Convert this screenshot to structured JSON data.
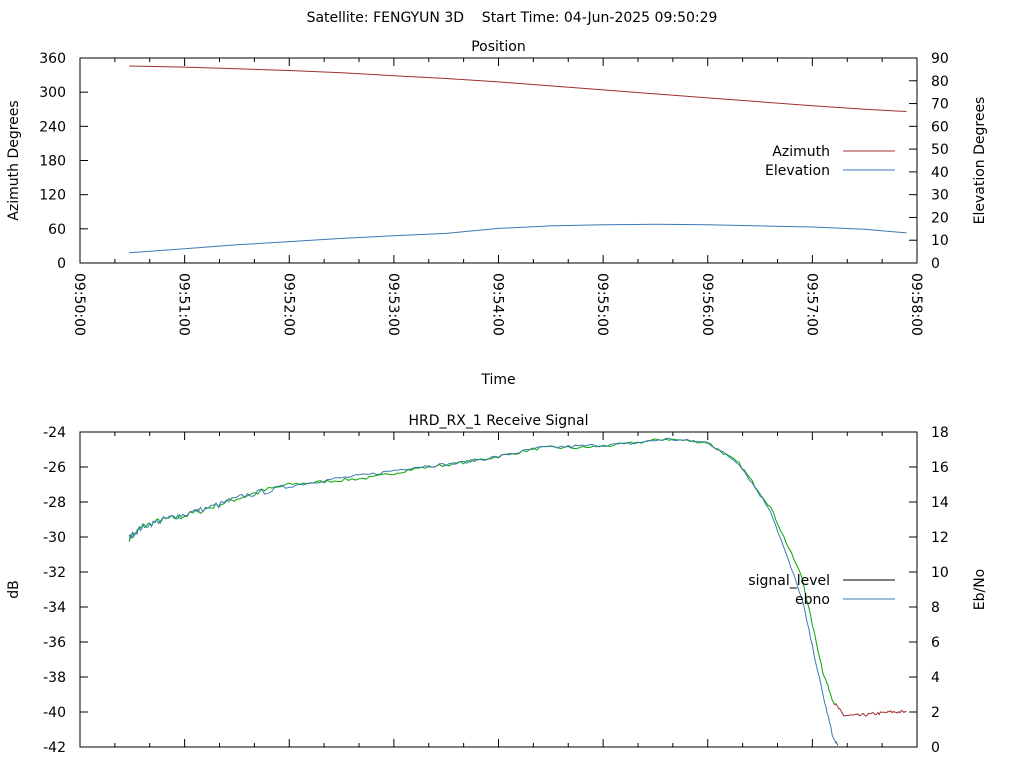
{
  "header": {
    "title": "Satellite: FENGYUN 3D    Start Time: 04-Jun-2025 09:50:29"
  },
  "chart_data": [
    {
      "type": "line",
      "title": "Position",
      "xlabel": "Time",
      "x_ticks": [
        "09:50:00",
        "09:51:00",
        "09:52:00",
        "09:53:00",
        "09:54:00",
        "09:55:00",
        "09:56:00",
        "09:57:00",
        "09:58:00"
      ],
      "xlim_minutes": [
        0,
        8
      ],
      "y_left": {
        "label": "Azimuth Degrees",
        "lim": [
          0,
          360
        ],
        "ticks": [
          0,
          60,
          120,
          180,
          240,
          300,
          360
        ]
      },
      "y_right": {
        "label": "Elevation Degrees",
        "lim": [
          0,
          90
        ],
        "ticks": [
          0,
          10,
          20,
          30,
          40,
          50,
          60,
          70,
          80,
          90
        ]
      },
      "legend": {
        "position": "right"
      },
      "series": [
        {
          "name": "Azimuth",
          "axis": "left",
          "color": "#a03030",
          "x_minutes": [
            0.47,
            1.0,
            1.5,
            2.0,
            2.5,
            3.0,
            3.5,
            4.0,
            4.5,
            5.0,
            5.5,
            6.0,
            6.5,
            7.0,
            7.5,
            7.9
          ],
          "values": [
            346,
            344,
            341,
            338,
            334,
            329,
            324,
            318,
            311,
            304,
            297,
            290,
            283,
            276,
            270,
            266
          ]
        },
        {
          "name": "Elevation",
          "axis": "right",
          "color": "#3c78b4",
          "x_minutes": [
            0.47,
            1.0,
            1.5,
            2.0,
            2.5,
            3.0,
            3.5,
            4.0,
            4.5,
            5.0,
            5.5,
            6.0,
            6.5,
            7.0,
            7.5,
            7.9
          ],
          "values": [
            4.5,
            6.3,
            8.0,
            9.4,
            10.8,
            12.0,
            13.0,
            15.2,
            16.3,
            16.8,
            17.0,
            16.8,
            16.3,
            15.8,
            14.8,
            13.2
          ]
        }
      ]
    },
    {
      "type": "line",
      "title": "HRD_RX_1 Receive Signal",
      "xlim_minutes": [
        0,
        8
      ],
      "y_left": {
        "label": "dB",
        "lim": [
          -42,
          -24
        ],
        "ticks": [
          -42,
          -40,
          -38,
          -36,
          -34,
          -32,
          -30,
          -28,
          -26,
          -24
        ]
      },
      "y_right": {
        "label": "Eb/No",
        "lim": [
          0,
          18
        ],
        "ticks": [
          0,
          2,
          4,
          6,
          8,
          10,
          12,
          14,
          16,
          18
        ]
      },
      "legend": {
        "position": "right"
      },
      "series": [
        {
          "name": "signal_level",
          "axis": "left",
          "color": "#000000",
          "line_colors": [
            "#00aa00",
            "#a03030"
          ],
          "x_minutes": [
            0.47,
            0.6,
            0.8,
            1.0,
            1.3,
            1.6,
            2.0,
            2.4,
            2.8,
            3.2,
            3.6,
            4.0,
            4.4,
            4.8,
            5.2,
            5.6,
            6.0,
            6.3,
            6.6,
            6.9,
            7.1,
            7.2,
            7.3,
            7.45,
            7.6,
            7.75,
            7.9
          ],
          "values": [
            -30.1,
            -29.4,
            -29.0,
            -28.8,
            -28.2,
            -27.6,
            -27.0,
            -26.8,
            -26.6,
            -26.1,
            -25.8,
            -25.4,
            -24.9,
            -24.9,
            -24.7,
            -24.4,
            -24.6,
            -25.8,
            -28.3,
            -32.3,
            -37.7,
            -39.4,
            -40.2,
            -40.2,
            -40.1,
            -40.0,
            -40.0
          ]
        },
        {
          "name": "ebno",
          "axis": "right",
          "color": "#3c78b4",
          "x_minutes": [
            0.47,
            0.6,
            0.8,
            1.0,
            1.3,
            1.6,
            2.0,
            2.4,
            2.8,
            3.2,
            3.6,
            4.0,
            4.4,
            4.8,
            5.2,
            5.6,
            6.0,
            6.3,
            6.6,
            6.9,
            7.1,
            7.2,
            7.25
          ],
          "values": [
            12.0,
            12.6,
            13.0,
            13.3,
            13.8,
            14.4,
            14.9,
            15.3,
            15.6,
            16.0,
            16.2,
            16.6,
            17.1,
            17.2,
            17.3,
            17.6,
            17.4,
            16.2,
            13.5,
            8.5,
            3.0,
            0.5,
            0.0
          ]
        }
      ]
    }
  ]
}
